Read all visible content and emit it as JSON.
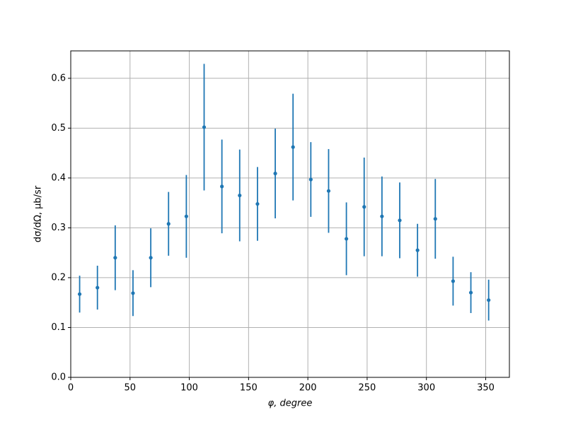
{
  "chart_data": {
    "type": "errorbar",
    "xlabel": "φ, degree",
    "ylabel": "dσ/dΩ, μb/sr",
    "x": [
      7.5,
      22.5,
      37.5,
      52.5,
      67.5,
      82.5,
      97.5,
      112.5,
      127.5,
      142.5,
      157.5,
      172.5,
      187.5,
      202.5,
      217.5,
      232.5,
      247.5,
      262.5,
      277.5,
      292.5,
      307.5,
      322.5,
      337.5,
      352.5
    ],
    "values": [
      0.167,
      0.18,
      0.24,
      0.169,
      0.24,
      0.308,
      0.323,
      0.502,
      0.383,
      0.365,
      0.348,
      0.409,
      0.462,
      0.397,
      0.374,
      0.278,
      0.342,
      0.323,
      0.315,
      0.255,
      0.318,
      0.193,
      0.17,
      0.155
    ],
    "errors": [
      0.037,
      0.044,
      0.065,
      0.046,
      0.059,
      0.064,
      0.083,
      0.127,
      0.094,
      0.092,
      0.074,
      0.09,
      0.107,
      0.075,
      0.084,
      0.073,
      0.099,
      0.08,
      0.076,
      0.053,
      0.08,
      0.049,
      0.041,
      0.041
    ],
    "color": "#1f77b4",
    "xlim": [
      0,
      370
    ],
    "ylim": [
      0,
      0.655
    ],
    "xticks": [
      0,
      50,
      100,
      150,
      200,
      250,
      300,
      350
    ],
    "yticks": [
      {
        "value": 0,
        "label": "0.0"
      },
      0.1,
      0.2,
      0.3,
      0.4,
      0.5,
      0.6
    ],
    "grid": true
  }
}
